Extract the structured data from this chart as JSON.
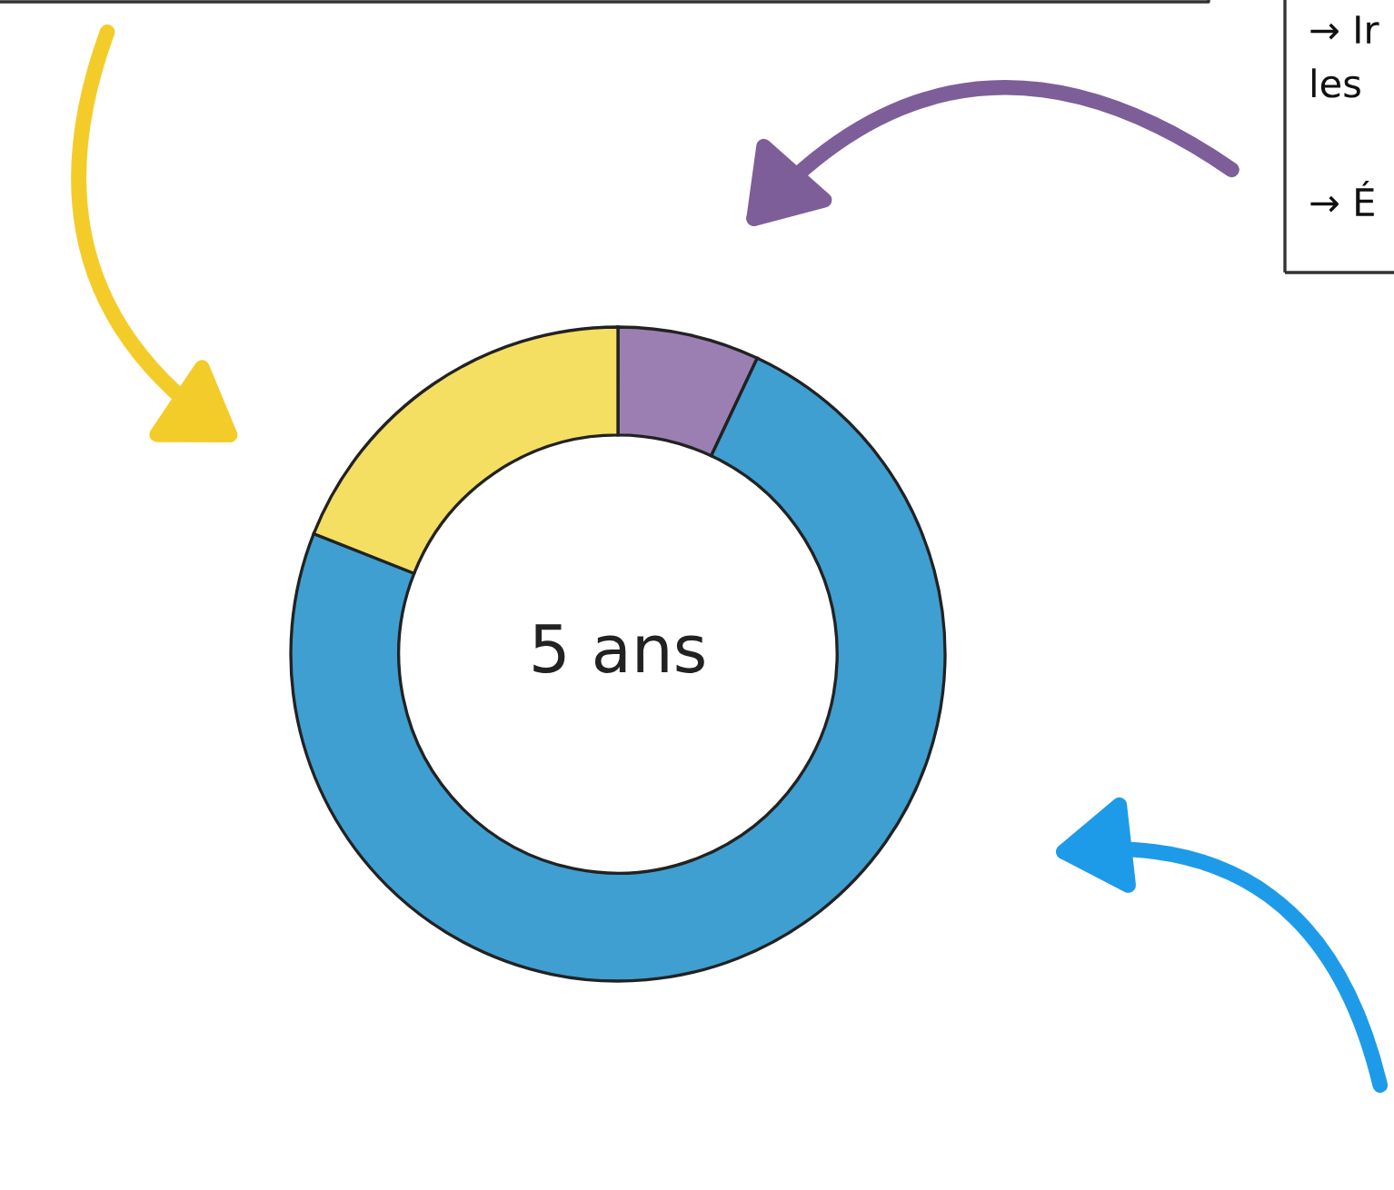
{
  "chart_data": {
    "type": "donut",
    "categories": [
      null,
      null,
      null
    ],
    "values": [
      7,
      74,
      19
    ],
    "colors": [
      "#9b7fb3",
      "#3f9fd0",
      "#f5df62"
    ],
    "annotations": [
      "5 ans",
      "→ Ir\nles",
      "→ É"
    ]
  }
}
